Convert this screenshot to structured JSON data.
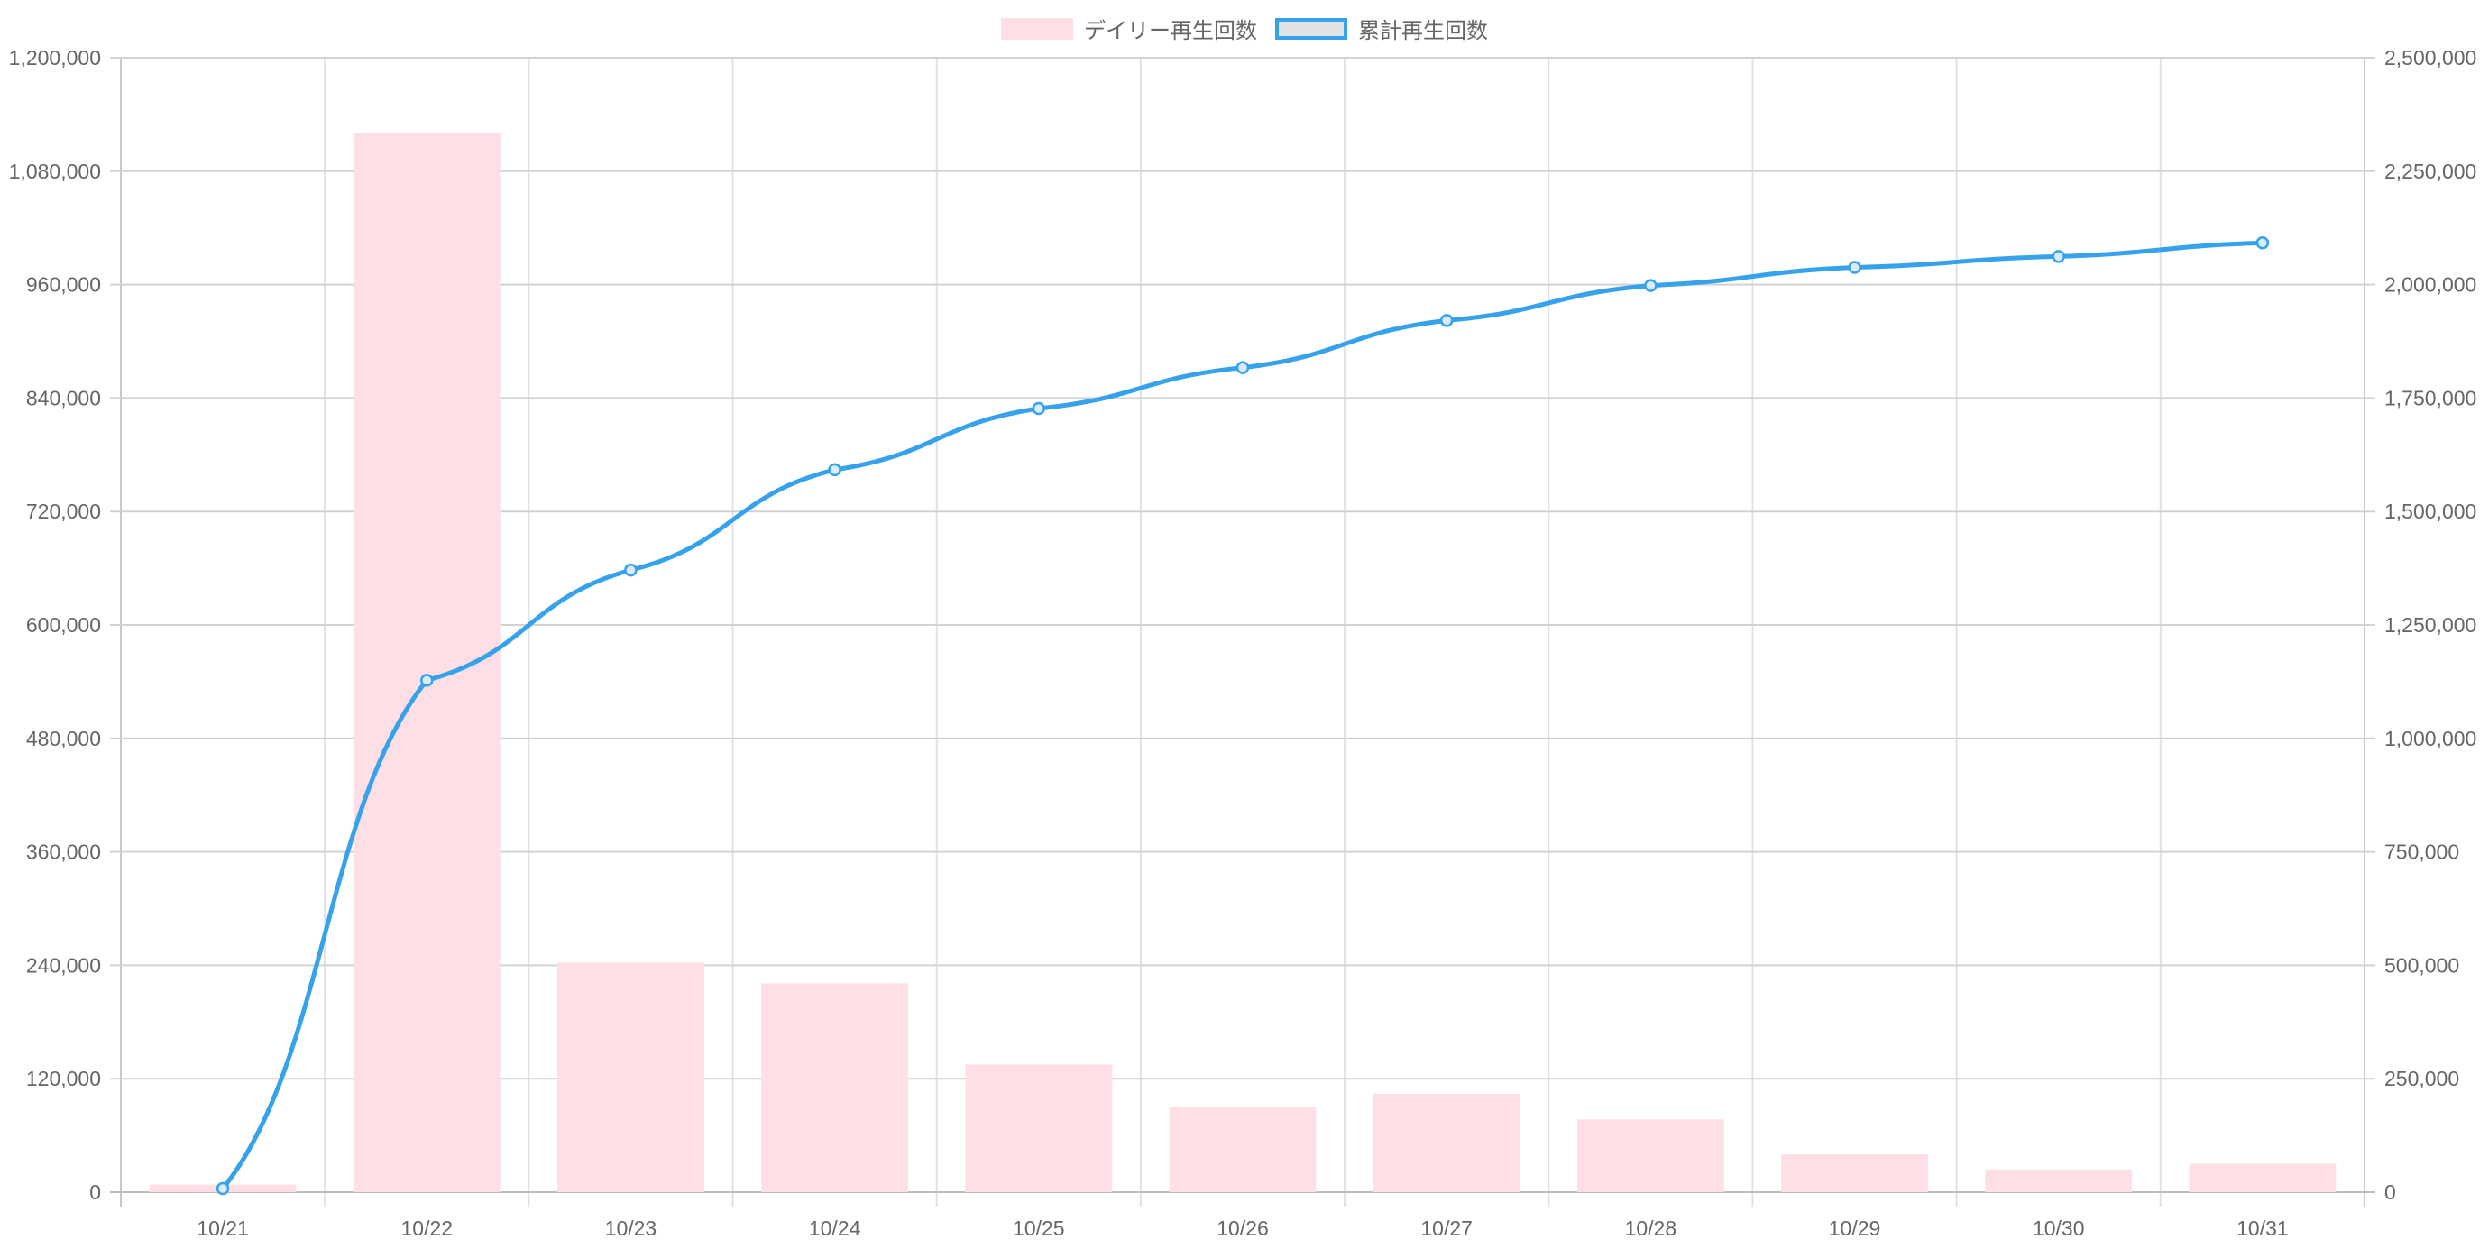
{
  "chart_data": {
    "type": "bar",
    "categories": [
      "10/21",
      "10/22",
      "10/23",
      "10/24",
      "10/25",
      "10/26",
      "10/27",
      "10/28",
      "10/29",
      "10/30",
      "10/31"
    ],
    "series": [
      {
        "name": "デイリー再生回数",
        "type": "bar",
        "axis": "left",
        "color": "#ffdfe6",
        "values": [
          8000,
          1120000,
          243000,
          221000,
          135000,
          90000,
          104000,
          77000,
          40000,
          24000,
          30000
        ]
      },
      {
        "name": "累計再生回数",
        "type": "line",
        "axis": "right",
        "color": "#36a2eb",
        "values": [
          8000,
          1128000,
          1371000,
          1592000,
          1727000,
          1817000,
          1921000,
          1998000,
          2038000,
          2062000,
          2092000
        ]
      }
    ],
    "y_left": {
      "ylim": [
        0,
        1200000
      ],
      "ticks": [
        "0",
        "120,000",
        "240,000",
        "360,000",
        "480,000",
        "600,000",
        "720,000",
        "840,000",
        "960,000",
        "1,080,000",
        "1,200,000"
      ]
    },
    "y_right": {
      "ylim": [
        0,
        2500000
      ],
      "ticks": [
        "0",
        "250,000",
        "500,000",
        "750,000",
        "1,000,000",
        "1,250,000",
        "1,500,000",
        "1,750,000",
        "2,000,000",
        "2,250,000",
        "2,500,000"
      ]
    },
    "grid": true,
    "legend_position": "top-center"
  }
}
